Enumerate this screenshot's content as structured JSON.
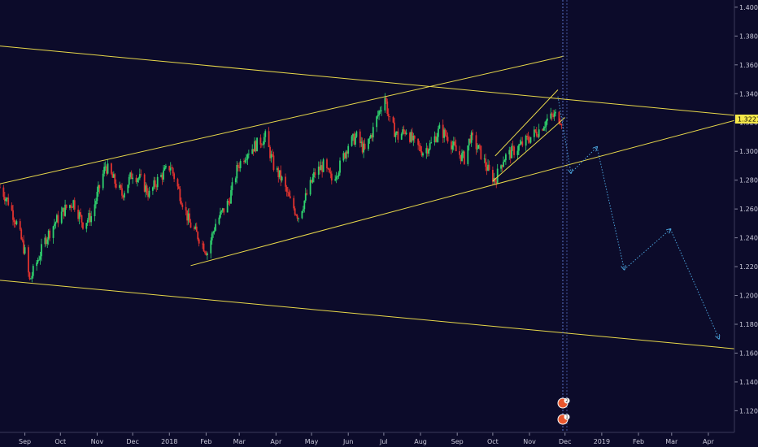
{
  "chart_data": {
    "type": "candlestick",
    "title": "",
    "xlabel": "",
    "ylabel": "",
    "ylim": [
      1.105,
      1.405
    ],
    "y_ticks": [
      "1.40000",
      "1.38000",
      "1.36000",
      "1.34000",
      "1.32000",
      "1.30000",
      "1.28000",
      "1.26000",
      "1.24000",
      "1.22000",
      "1.20000",
      "1.18000",
      "1.16000",
      "1.14000",
      "1.12000"
    ],
    "y_tick_values": [
      1.4,
      1.38,
      1.36,
      1.34,
      1.32,
      1.3,
      1.28,
      1.26,
      1.24,
      1.22,
      1.2,
      1.18,
      1.16,
      1.14,
      1.12
    ],
    "x_ticks": [
      "Sep",
      "Oct",
      "Nov",
      "Dec",
      "2018",
      "Feb",
      "Mar",
      "Apr",
      "May",
      "Jun",
      "Jul",
      "Aug",
      "Sep",
      "Oct",
      "Nov",
      "Dec",
      "2019",
      "Feb",
      "Mar",
      "Apr"
    ],
    "x_tick_dates": [
      "2017-09-01",
      "2017-10-01",
      "2017-11-01",
      "2017-12-01",
      "2018-01-01",
      "2018-02-01",
      "2018-03-01",
      "2018-04-01",
      "2018-05-01",
      "2018-06-01",
      "2018-07-01",
      "2018-08-01",
      "2018-09-01",
      "2018-10-01",
      "2018-11-01",
      "2018-12-01",
      "2019-01-01",
      "2019-02-01",
      "2019-03-01",
      "2019-04-01"
    ],
    "x_range": [
      "2017-08-11",
      "2019-04-23"
    ],
    "current_price": "1.32218",
    "price_path": [
      [
        "2017-08-11",
        1.275
      ],
      [
        "2017-08-18",
        1.265
      ],
      [
        "2017-08-25",
        1.25
      ],
      [
        "2017-09-01",
        1.23
      ],
      [
        "2017-09-05",
        1.21
      ],
      [
        "2017-09-12",
        1.225
      ],
      [
        "2017-09-19",
        1.24
      ],
      [
        "2017-09-26",
        1.25
      ],
      [
        "2017-10-05",
        1.26
      ],
      [
        "2017-10-12",
        1.265
      ],
      [
        "2017-10-20",
        1.25
      ],
      [
        "2017-10-27",
        1.255
      ],
      [
        "2017-11-03",
        1.275
      ],
      [
        "2017-11-08",
        1.29
      ],
      [
        "2017-11-15",
        1.28
      ],
      [
        "2017-11-22",
        1.27
      ],
      [
        "2017-12-01",
        1.285
      ],
      [
        "2017-12-08",
        1.28
      ],
      [
        "2017-12-15",
        1.27
      ],
      [
        "2017-12-22",
        1.28
      ],
      [
        "2018-01-02",
        1.29
      ],
      [
        "2018-01-10",
        1.27
      ],
      [
        "2018-01-18",
        1.25
      ],
      [
        "2018-01-26",
        1.24
      ],
      [
        "2018-02-02",
        1.23
      ],
      [
        "2018-02-09",
        1.25
      ],
      [
        "2018-02-20",
        1.265
      ],
      [
        "2018-02-28",
        1.29
      ],
      [
        "2018-03-08",
        1.3
      ],
      [
        "2018-03-16",
        1.305
      ],
      [
        "2018-03-23",
        1.31
      ],
      [
        "2018-03-30",
        1.29
      ],
      [
        "2018-04-06",
        1.28
      ],
      [
        "2018-04-13",
        1.265
      ],
      [
        "2018-04-20",
        1.255
      ],
      [
        "2018-04-27",
        1.27
      ],
      [
        "2018-05-04",
        1.285
      ],
      [
        "2018-05-11",
        1.29
      ],
      [
        "2018-05-18",
        1.28
      ],
      [
        "2018-05-25",
        1.29
      ],
      [
        "2018-06-01",
        1.305
      ],
      [
        "2018-06-08",
        1.31
      ],
      [
        "2018-06-15",
        1.3
      ],
      [
        "2018-06-22",
        1.315
      ],
      [
        "2018-06-28",
        1.33
      ],
      [
        "2018-07-02",
        1.338
      ],
      [
        "2018-07-06",
        1.32
      ],
      [
        "2018-07-13",
        1.31
      ],
      [
        "2018-07-20",
        1.315
      ],
      [
        "2018-07-27",
        1.305
      ],
      [
        "2018-08-03",
        1.3
      ],
      [
        "2018-08-10",
        1.305
      ],
      [
        "2018-08-17",
        1.315
      ],
      [
        "2018-08-24",
        1.31
      ],
      [
        "2018-08-31",
        1.3
      ],
      [
        "2018-09-07",
        1.295
      ],
      [
        "2018-09-12",
        1.31
      ],
      [
        "2018-09-20",
        1.3
      ],
      [
        "2018-09-28",
        1.285
      ],
      [
        "2018-10-03",
        1.28
      ],
      [
        "2018-10-10",
        1.295
      ],
      [
        "2018-10-18",
        1.3
      ],
      [
        "2018-10-26",
        1.305
      ],
      [
        "2018-11-02",
        1.31
      ],
      [
        "2018-11-09",
        1.315
      ],
      [
        "2018-11-16",
        1.322
      ],
      [
        "2018-11-23",
        1.325
      ],
      [
        "2018-11-28",
        1.322
      ]
    ],
    "trendlines": [
      {
        "from": [
          "2017-08-11",
          1.3731
        ],
        "to": [
          "2019-04-23",
          1.325
        ],
        "color": "#e8d84a"
      },
      {
        "from": [
          "2017-08-11",
          1.2105
        ],
        "to": [
          "2019-04-23",
          1.163
        ],
        "color": "#e8d84a"
      },
      {
        "from": [
          "2017-08-11",
          1.2775
        ],
        "to": [
          "2018-11-30",
          1.366
        ],
        "color": "#e8d84a"
      },
      {
        "from": [
          "2018-01-19",
          1.2207
        ],
        "to": [
          "2019-04-23",
          1.3214
        ],
        "color": "#e8d84a"
      },
      {
        "from": [
          "2018-10-01",
          1.2793
        ],
        "to": [
          "2018-12-01",
          1.3235
        ],
        "color": "#e8d84a"
      },
      {
        "from": [
          "2018-10-03",
          1.2968
        ],
        "to": [
          "2018-11-25",
          1.3427
        ],
        "color": "#e8d84a"
      }
    ],
    "projection": [
      [
        "2018-11-25",
        1.338
      ],
      [
        "2018-12-06",
        1.285
      ],
      [
        "2018-12-28",
        1.303
      ],
      [
        "2019-01-20",
        1.218
      ],
      [
        "2019-02-28",
        1.246
      ],
      [
        "2019-04-10",
        1.17
      ]
    ],
    "annotation_badges": [
      "2",
      "1"
    ]
  }
}
